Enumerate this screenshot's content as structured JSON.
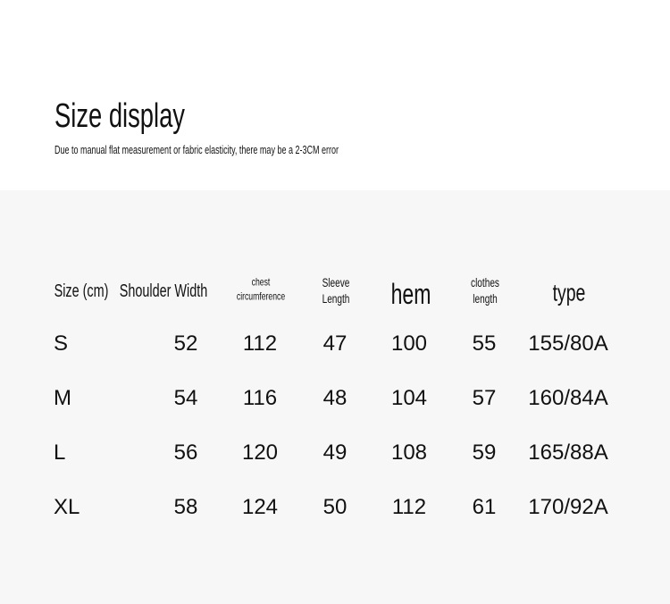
{
  "header": {
    "title": "Size display",
    "note": "Due to manual flat measurement or fabric elasticity, there may be a 2-3CM error"
  },
  "table": {
    "columns": [
      {
        "label": "Size (cm)"
      },
      {
        "label": "Shoulder Width"
      },
      {
        "line1": "chest",
        "line2": "circumference"
      },
      {
        "line1": "Sleeve",
        "line2": "Length"
      },
      {
        "label": "hem"
      },
      {
        "line1": "clothes",
        "line2": "length"
      },
      {
        "label": "type"
      }
    ],
    "rows": [
      [
        "S",
        "52",
        "112",
        "47",
        "100",
        "55",
        "155/80A"
      ],
      [
        "M",
        "54",
        "116",
        "48",
        "104",
        "57",
        "160/84A"
      ],
      [
        "L",
        "56",
        "120",
        "49",
        "108",
        "59",
        "165/88A"
      ],
      [
        "XL",
        "58",
        "124",
        "50",
        "112",
        "61",
        "170/92A"
      ]
    ]
  }
}
